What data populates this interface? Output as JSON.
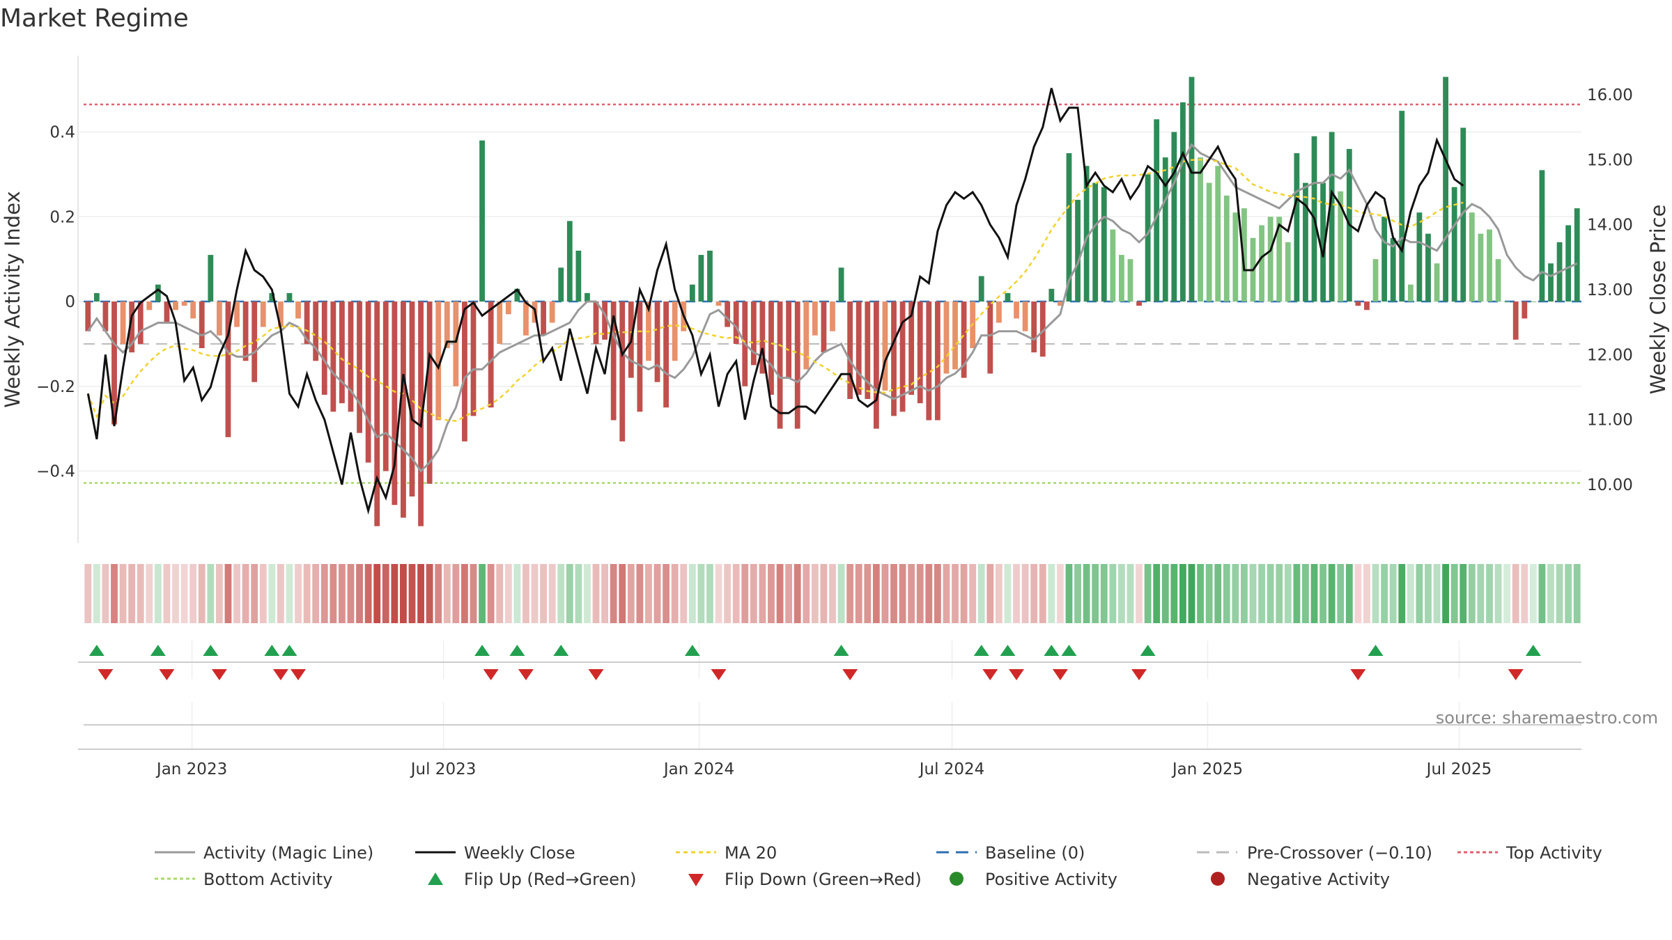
{
  "chart_data": {
    "type": "bar",
    "title": "Market Regime",
    "ylabel_left": "Weekly Activity Index",
    "ylabel_right": "Weekly Close Price",
    "source": "source: sharemaestro.com",
    "x_range": [
      "2022-10-15",
      "2025-09-27"
    ],
    "x_ticks": [
      "Jan 2023",
      "Jul 2023",
      "Jan 2024",
      "Jul 2024",
      "Jan 2025",
      "Jul 2025"
    ],
    "y_left_range": [
      -0.57,
      0.58
    ],
    "y_left_ticks": [
      "−0.4",
      "−0.2",
      "0",
      "0.2",
      "0.4"
    ],
    "y_right_range": [
      9.1,
      16.6
    ],
    "y_right_ticks": [
      "10.00",
      "11.00",
      "12.00",
      "13.00",
      "14.00",
      "15.00",
      "16.00"
    ],
    "reference_lines": {
      "top_activity": 0.465,
      "bottom_activity": -0.428,
      "pre_crossover": -0.1,
      "baseline": 0
    },
    "activity": [
      -0.07,
      0.02,
      -0.07,
      -0.29,
      -0.1,
      -0.12,
      -0.1,
      -0.02,
      0.04,
      -0.05,
      -0.02,
      -0.01,
      -0.04,
      -0.11,
      0.11,
      -0.08,
      -0.32,
      -0.06,
      -0.14,
      -0.19,
      -0.06,
      0.02,
      -0.06,
      0.02,
      -0.04,
      -0.1,
      -0.14,
      -0.22,
      -0.26,
      -0.24,
      -0.26,
      -0.31,
      -0.38,
      -0.53,
      -0.4,
      -0.48,
      -0.51,
      -0.46,
      -0.53,
      -0.43,
      -0.28,
      -0.11,
      -0.2,
      -0.33,
      -0.27,
      0.38,
      -0.25,
      -0.1,
      -0.03,
      0.03,
      -0.08,
      -0.05,
      -0.08,
      -0.05,
      0.08,
      0.19,
      0.12,
      0.02,
      -0.1,
      -0.09,
      -0.28,
      -0.33,
      -0.18,
      -0.26,
      -0.14,
      -0.19,
      -0.25,
      -0.14,
      -0.07,
      0.04,
      0.11,
      0.12,
      -0.01,
      -0.06,
      -0.1,
      -0.2,
      -0.15,
      -0.17,
      -0.22,
      -0.3,
      -0.18,
      -0.3,
      -0.16,
      -0.08,
      -0.12,
      -0.07,
      0.08,
      -0.23,
      -0.22,
      -0.23,
      -0.3,
      -0.21,
      -0.27,
      -0.26,
      -0.22,
      -0.24,
      -0.28,
      -0.28,
      -0.17,
      -0.16,
      -0.18,
      -0.11,
      0.06,
      -0.17,
      -0.05,
      0.02,
      -0.04,
      -0.07,
      -0.12,
      -0.13,
      0.03,
      -0.01,
      0.35,
      0.24,
      0.32,
      0.28,
      0.27,
      0.17,
      0.11,
      0.1,
      -0.01,
      0.3,
      0.43,
      0.34,
      0.4,
      0.47,
      0.53,
      0.34,
      0.28,
      0.32,
      0.25,
      0.21,
      0.22,
      0.15,
      0.18,
      0.2,
      0.2,
      0.14,
      0.35,
      0.28,
      0.39,
      0.28,
      0.4,
      0.26,
      0.36,
      -0.01,
      -0.02,
      0.1,
      0.2,
      0.15,
      0.45,
      0.04,
      0.21,
      0.16,
      0.09,
      0.53,
      0.27,
      0.41,
      0.21,
      0.16,
      0.17,
      0.1,
      0.0,
      -0.09,
      -0.04,
      0.0,
      0.31,
      0.09,
      0.14,
      0.18,
      0.22
    ],
    "weekly_close": [
      11.4,
      10.7,
      12.0,
      10.9,
      11.8,
      12.6,
      12.8,
      12.9,
      13.0,
      12.9,
      12.5,
      11.6,
      11.8,
      11.3,
      11.5,
      12.0,
      12.3,
      13.0,
      13.6,
      13.3,
      13.2,
      13.0,
      12.4,
      11.4,
      11.2,
      11.7,
      11.3,
      11.0,
      10.5,
      10.0,
      10.8,
      10.1,
      9.6,
      10.1,
      9.8,
      10.3,
      11.7,
      11.0,
      10.9,
      12.0,
      11.8,
      12.2,
      12.2,
      12.7,
      12.8,
      12.6,
      12.7,
      12.8,
      12.9,
      13.0,
      12.8,
      12.7,
      11.9,
      12.1,
      11.6,
      12.4,
      11.9,
      11.4,
      12.1,
      11.7,
      12.6,
      12.0,
      12.2,
      13.0,
      12.7,
      13.3,
      13.7,
      13.0,
      12.6,
      12.3,
      11.7,
      12.0,
      11.2,
      11.7,
      11.9,
      11.0,
      11.6,
      12.1,
      11.2,
      11.1,
      11.1,
      11.2,
      11.2,
      11.1,
      11.3,
      11.5,
      11.7,
      11.7,
      11.3,
      11.2,
      11.3,
      11.9,
      12.2,
      12.5,
      12.6,
      13.2,
      13.1,
      13.9,
      14.3,
      14.5,
      14.4,
      14.5,
      14.3,
      14.0,
      13.8,
      13.5,
      14.3,
      14.7,
      15.2,
      15.5,
      16.1,
      15.6,
      15.8,
      15.8,
      14.6,
      14.8,
      14.6,
      14.5,
      14.7,
      14.4,
      14.6,
      14.9,
      14.8,
      14.6,
      14.8,
      15.1,
      14.8,
      14.8,
      15.0,
      15.2,
      14.9,
      14.7,
      13.3,
      13.3,
      13.5,
      13.6,
      14.0,
      13.9,
      14.4,
      14.3,
      14.1,
      13.5,
      14.5,
      14.3,
      14.0,
      13.9,
      14.3,
      14.5,
      14.4,
      13.8,
      13.6,
      14.2,
      14.6,
      14.8,
      15.3,
      15.0,
      14.7,
      14.6
    ],
    "magic_line": [
      -0.07,
      -0.04,
      -0.07,
      -0.1,
      -0.12,
      -0.1,
      -0.07,
      -0.06,
      -0.05,
      -0.05,
      -0.05,
      -0.06,
      -0.07,
      -0.08,
      -0.07,
      -0.09,
      -0.12,
      -0.13,
      -0.13,
      -0.12,
      -0.1,
      -0.08,
      -0.07,
      -0.05,
      -0.06,
      -0.09,
      -0.11,
      -0.14,
      -0.17,
      -0.19,
      -0.21,
      -0.24,
      -0.28,
      -0.32,
      -0.31,
      -0.33,
      -0.35,
      -0.37,
      -0.4,
      -0.38,
      -0.35,
      -0.29,
      -0.25,
      -0.18,
      -0.16,
      -0.16,
      -0.14,
      -0.12,
      -0.11,
      -0.1,
      -0.09,
      -0.08,
      -0.08,
      -0.07,
      -0.06,
      -0.05,
      -0.02,
      0.0,
      0.0,
      -0.03,
      -0.08,
      -0.12,
      -0.14,
      -0.15,
      -0.16,
      -0.15,
      -0.17,
      -0.18,
      -0.16,
      -0.13,
      -0.08,
      -0.03,
      -0.02,
      -0.04,
      -0.06,
      -0.1,
      -0.12,
      -0.13,
      -0.15,
      -0.18,
      -0.18,
      -0.19,
      -0.17,
      -0.14,
      -0.12,
      -0.11,
      -0.1,
      -0.14,
      -0.17,
      -0.19,
      -0.21,
      -0.22,
      -0.23,
      -0.22,
      -0.21,
      -0.2,
      -0.21,
      -0.2,
      -0.18,
      -0.17,
      -0.15,
      -0.12,
      -0.08,
      -0.08,
      -0.07,
      -0.07,
      -0.07,
      -0.08,
      -0.09,
      -0.07,
      -0.05,
      -0.03,
      0.05,
      0.09,
      0.15,
      0.18,
      0.2,
      0.19,
      0.17,
      0.16,
      0.14,
      0.16,
      0.2,
      0.24,
      0.28,
      0.33,
      0.37,
      0.35,
      0.34,
      0.33,
      0.3,
      0.27,
      0.26,
      0.25,
      0.24,
      0.23,
      0.22,
      0.24,
      0.26,
      0.27,
      0.28,
      0.28,
      0.3,
      0.29,
      0.31,
      0.27,
      0.23,
      0.17,
      0.14,
      0.13,
      0.15,
      0.14,
      0.14,
      0.13,
      0.12,
      0.15,
      0.18,
      0.21,
      0.23,
      0.22,
      0.2,
      0.17,
      0.11,
      0.08,
      0.06,
      0.05,
      0.07,
      0.06,
      0.07,
      0.08,
      0.09
    ]
  },
  "legend": {
    "activity": "Activity (Magic Line)",
    "close": "Weekly Close",
    "ma20": "MA 20",
    "baseline": "Baseline (0)",
    "precross": "Pre-Crossover (−0.10)",
    "top": "Top Activity",
    "bottom": "Bottom Activity",
    "flip_up": "Flip Up (Red→Green)",
    "flip_down": "Flip Down (Green→Red)",
    "positive": "Positive Activity",
    "negative": "Negative Activity"
  },
  "colors": {
    "positive_strong": "#2e8b57",
    "positive_light": "#82c482",
    "negative_strong": "#c0504d",
    "negative_light": "#e8916a",
    "close": "#111111",
    "magic": "#999999",
    "ma20": "#f2d22e",
    "top": "#e06070",
    "bottom": "#a8d86a",
    "baseline": "#2c6fb0",
    "precross": "#bbbbbb",
    "flip_up": "#22a050",
    "flip_down": "#d02828",
    "positive_dot": "#2a8a2a",
    "negative_dot": "#b02020"
  }
}
